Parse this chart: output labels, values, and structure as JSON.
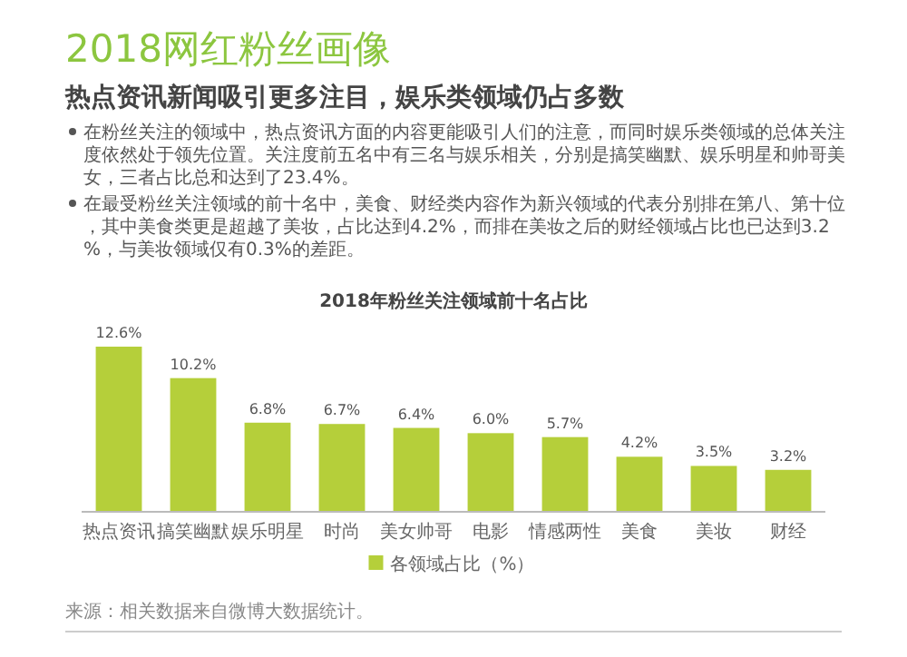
{
  "chart_data": {
    "type": "bar",
    "title": "2018网红粉丝画像",
    "subtitle": "热点资讯新闻吸引更多注目，娱乐类领域仍占多数",
    "annotations": [
      "在粉丝关注的领域中，热点资讯方面的内容更能吸引人们的注意，而同时娱乐类领域的总体关注度依然处于领先位置。关注度前五名中有三名与娱乐相关，分别是搞笑幽默、娱乐明星和帅哥美女，三者占比总和达到了23.4%。",
      "在最受粉丝关注领域的前十名中，美食、财经类内容作为新兴领域的代表分别排在第八、第十位，其中美食类更是超越了美妆，占比达到4.2%，而排在美妆之后的财经领域占比也已达到3.2%，与美妆领域仅有0.3%的差距。",
      "2018年粉丝关注领域前十名占比",
      "来源：相关数据来自微博大数据统计。"
    ],
    "categories": [
      "热点资讯",
      "搞笑幽默",
      "娱乐明星",
      "时尚",
      "美女帅哥",
      "电影",
      "情感两性",
      "美食",
      "美妆",
      "财经"
    ],
    "series": [
      {
        "name": "各领域占比（%）",
        "color": "#b5cf3a",
        "values": [
          12.6,
          10.2,
          6.8,
          6.7,
          6.4,
          6.0,
          5.7,
          4.2,
          3.5,
          3.2
        ],
        "value_labels": [
          "12.6%",
          "10.2%",
          "6.8%",
          "6.7%",
          "6.4%",
          "6.0%",
          "5.7%",
          "4.2%",
          "3.5%",
          "3.2%"
        ]
      }
    ],
    "legend": "bottom",
    "grid": false
  }
}
